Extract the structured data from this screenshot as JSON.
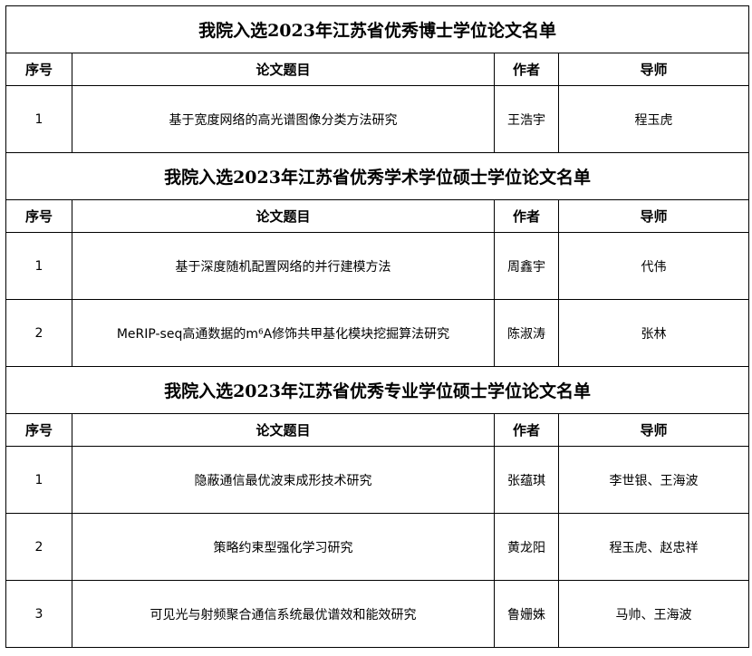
{
  "sections": [
    {
      "title": "我院入选2023年江苏省优秀博士学位论文名单",
      "headers": [
        "序号",
        "论文题目",
        "作者",
        "导师"
      ],
      "rows": [
        {
          "no": "1",
          "title": "基于宽度网络的高光谱图像分类方法研究",
          "author": "王浩宇",
          "advisor": "程玉虎"
        }
      ]
    },
    {
      "title": "我院入选2023年江苏省优秀学术学位硕士学位论文名单",
      "headers": [
        "序号",
        "论文题目",
        "作者",
        "导师"
      ],
      "rows": [
        {
          "no": "1",
          "title": "基于深度随机配置网络的并行建模方法",
          "author": "周鑫宇",
          "advisor": "代伟"
        },
        {
          "no": "2",
          "title": "MeRIP-seq高通数据的m⁶A修饰共甲基化模块挖掘算法研究",
          "author": "陈淑涛",
          "advisor": "张林"
        }
      ]
    },
    {
      "title": "我院入选2023年江苏省优秀专业学位硕士学位论文名单",
      "headers": [
        "序号",
        "论文题目",
        "作者",
        "导师"
      ],
      "rows": [
        {
          "no": "1",
          "title": "隐蔽通信最优波束成形技术研究",
          "author": "张蕴琪",
          "advisor": "李世银、王海波"
        },
        {
          "no": "2",
          "title": "策略约束型强化学习研究",
          "author": "黄龙阳",
          "advisor": "程玉虎、赵忠祥"
        },
        {
          "no": "3",
          "title": "可见光与射频聚合通信系统最优谱效和能效研究",
          "author": "鲁姗姝",
          "advisor": "马帅、王海波"
        }
      ]
    }
  ]
}
